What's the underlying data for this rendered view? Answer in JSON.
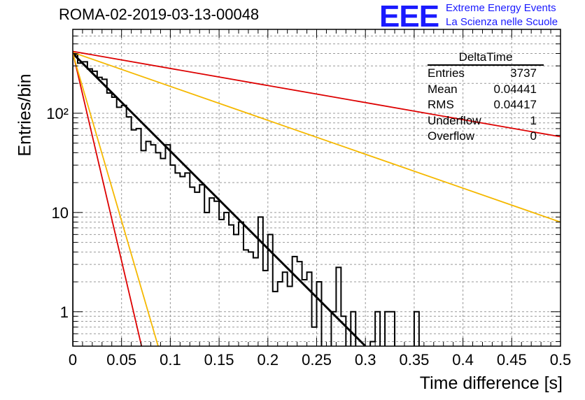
{
  "header": {
    "title": "ROMA-02-2019-03-13-00048",
    "logo_text": "EEE",
    "logo_line1": "Extreme Energy Events",
    "logo_line2": "La Scienza nelle Scuole"
  },
  "stats": {
    "title": "DeltaTime",
    "rows": [
      {
        "label": "Entries",
        "value": "3737"
      },
      {
        "label": "Mean",
        "value": "0.04441"
      },
      {
        "label": "RMS",
        "value": "0.04417"
      },
      {
        "label": "Underflow",
        "value": "1"
      },
      {
        "label": "Overflow",
        "value": "0"
      }
    ]
  },
  "chart_data": {
    "type": "histogram",
    "xlabel": "Time difference [s]",
    "ylabel": "Entries/bin",
    "xlim": [
      0,
      0.5
    ],
    "ylim": [
      0.45,
      700
    ],
    "log_y": true,
    "grid": true,
    "x_ticks": [
      "0",
      "0.05",
      "0.1",
      "0.15",
      "0.2",
      "0.25",
      "0.3",
      "0.35",
      "0.4",
      "0.45",
      "0.5"
    ],
    "y_ticks": [
      {
        "value": 1,
        "label": "1"
      },
      {
        "value": 10,
        "label": "10"
      },
      {
        "value": 100,
        "label": "10²"
      }
    ],
    "histogram": {
      "bin_width": 0.005,
      "counts": [
        390,
        320,
        330,
        280,
        265,
        230,
        220,
        160,
        145,
        115,
        120,
        92,
        68,
        70,
        42,
        52,
        48,
        40,
        35,
        48,
        30,
        25,
        23,
        25,
        18,
        16,
        19,
        10,
        14,
        13,
        8.5,
        10,
        7.5,
        6,
        8,
        4.2,
        4,
        3.5,
        9,
        2.6,
        6,
        1.6,
        2.0,
        2.5,
        1.8,
        3.6,
        3.2,
        2.1,
        2.5,
        0.7,
        2,
        0.3,
        0.2,
        1,
        2.8,
        0.9,
        0.2,
        1,
        0.1,
        0.3,
        0.2,
        0.5,
        1,
        0.2,
        1,
        1,
        0.1,
        0.05,
        0.1,
        0.05,
        1,
        0,
        0,
        0,
        0,
        0,
        0,
        0,
        0,
        0,
        0,
        0,
        0,
        0,
        0,
        0,
        0,
        0,
        0,
        0,
        0,
        0,
        0,
        0,
        0,
        0,
        0,
        0,
        0,
        0
      ],
      "color": "#000000"
    },
    "curves": [
      {
        "color": "#000000",
        "x": [
          0,
          0.3
        ],
        "y": [
          400,
          0.45
        ],
        "width": 3
      },
      {
        "color": "#dd0000",
        "x": [
          0,
          0.5
        ],
        "y": [
          420,
          58
        ],
        "width": 1.8
      },
      {
        "color": "#f5b800",
        "x": [
          0,
          0.5
        ],
        "y": [
          410,
          8
        ],
        "width": 1.8
      },
      {
        "color": "#dd0000",
        "x": [
          0,
          0.0705
        ],
        "y": [
          410,
          0.45
        ],
        "width": 1.8
      },
      {
        "color": "#f5b800",
        "x": [
          0,
          0.0875
        ],
        "y": [
          400,
          0.45
        ],
        "width": 1.8
      }
    ]
  }
}
